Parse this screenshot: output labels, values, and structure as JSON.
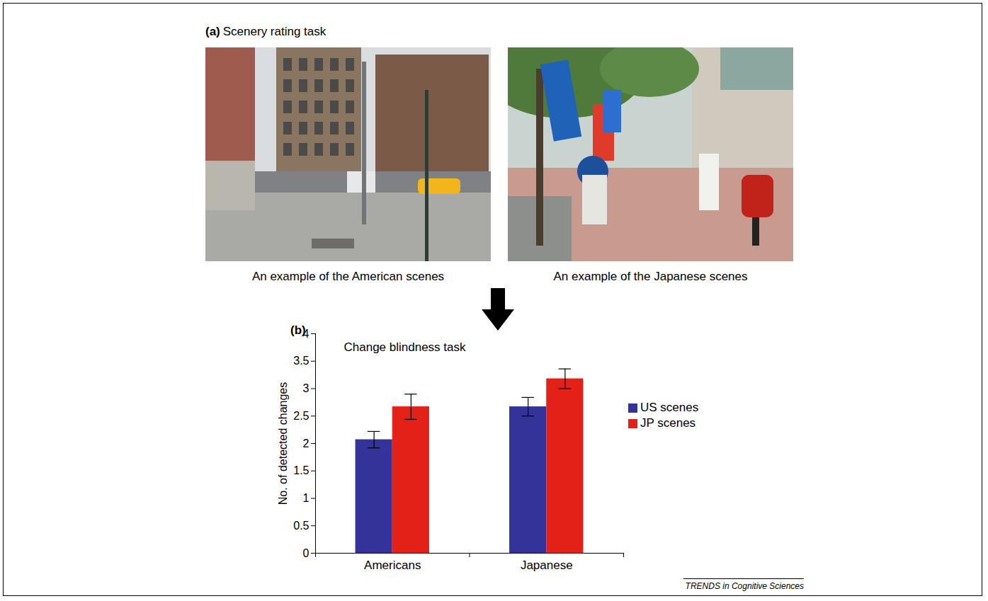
{
  "panel_a": {
    "label": "(a)",
    "title": "Scenery rating task",
    "captions": [
      "An example of the American scenes",
      "An example of the Japanese scenes"
    ]
  },
  "chart_data": {
    "type": "bar",
    "panel_label": "(b)",
    "title": "Change blindness task",
    "ylabel": "No. of detected changes",
    "categories": [
      "Americans",
      "Japanese"
    ],
    "series": [
      {
        "name": "US scenes",
        "color": "#333399",
        "values": [
          2.07,
          2.67
        ],
        "errors": [
          0.15,
          0.17
        ]
      },
      {
        "name": "JP scenes",
        "color": "#e32119",
        "values": [
          2.67,
          3.18
        ],
        "errors": [
          0.23,
          0.18
        ]
      }
    ],
    "ylim": [
      0,
      4
    ],
    "yticks": [
      0,
      0.5,
      1,
      1.5,
      2,
      2.5,
      3,
      3.5,
      4
    ],
    "legend": "right"
  },
  "source": "TRENDS in Cognitive Sciences"
}
